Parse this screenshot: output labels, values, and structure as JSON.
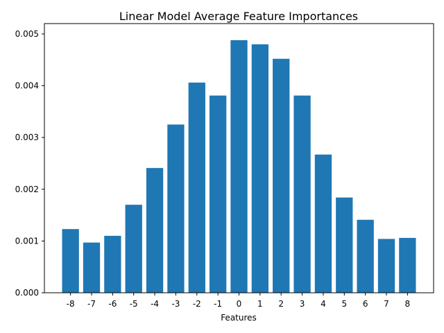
{
  "chart_data": {
    "type": "bar",
    "title": "Linear Model Average Feature Importances",
    "xlabel": "Features",
    "ylabel": "",
    "categories": [
      "-8",
      "-7",
      "-6",
      "-5",
      "-4",
      "-3",
      "-2",
      "-1",
      "0",
      "1",
      "2",
      "3",
      "4",
      "5",
      "6",
      "7",
      "8"
    ],
    "values": [
      0.00123,
      0.00097,
      0.0011,
      0.0017,
      0.00241,
      0.00325,
      0.00406,
      0.00381,
      0.00488,
      0.0048,
      0.00452,
      0.00381,
      0.00267,
      0.00184,
      0.00141,
      0.00104,
      0.00106
    ],
    "ylim": [
      0,
      0.0052
    ],
    "yticks": [
      "0.000",
      "0.001",
      "0.002",
      "0.003",
      "0.004",
      "0.005"
    ],
    "ytick_values": [
      0,
      0.001,
      0.002,
      0.003,
      0.004,
      0.005
    ],
    "bar_color": "#1f77b4",
    "grid": false,
    "legend": "none"
  }
}
